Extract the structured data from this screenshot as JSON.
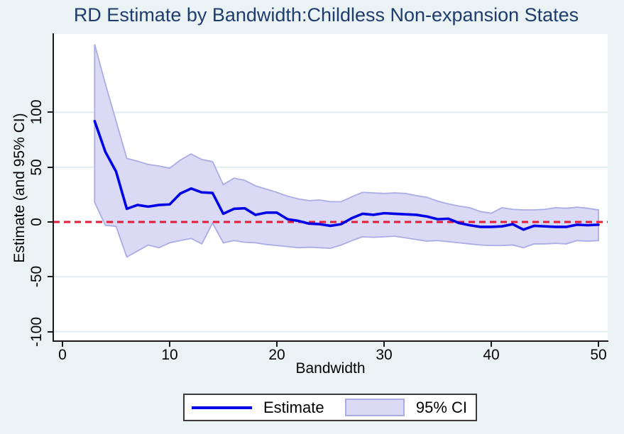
{
  "title": "RD Estimate by Bandwidth:Childless Non-expansion States",
  "axes": {
    "x": {
      "label": "Bandwidth",
      "ticks": [
        0,
        10,
        20,
        30,
        40,
        50
      ]
    },
    "y": {
      "label": "Estimate (and 95% CI)",
      "ticks": [
        -100,
        -50,
        0,
        50,
        100
      ]
    }
  },
  "legend": {
    "estimate_label": "Estimate",
    "ci_label": "95% CI"
  },
  "colors": {
    "background": "#EAF2F3",
    "plot_background": "#FFFFFF",
    "title": "#1E3C6E",
    "estimate_line": "#0000E8",
    "ci_fill": "#DADAF4",
    "ci_edge": "#ABACE5",
    "zero_line": "#E41B38",
    "gridline": "#E1EEF0",
    "axis": "#1A1A1A"
  },
  "chart_data": {
    "type": "line",
    "title": "RD Estimate by Bandwidth:Childless Non-expansion States",
    "xlabel": "Bandwidth",
    "ylabel": "Estimate (and 95% CI)",
    "xlim": [
      -0.9,
      50.9
    ],
    "ylim": [
      -108,
      171
    ],
    "grid": true,
    "legend_position": "bottom",
    "reference_line": {
      "y": 0,
      "style": "dashed",
      "color": "#E41B38"
    },
    "x": [
      3,
      4,
      5,
      6,
      7,
      8,
      9,
      10,
      11,
      12,
      13,
      14,
      15,
      16,
      17,
      18,
      19,
      20,
      21,
      22,
      23,
      24,
      25,
      26,
      27,
      28,
      29,
      30,
      31,
      32,
      33,
      34,
      35,
      36,
      37,
      38,
      39,
      40,
      41,
      42,
      43,
      44,
      45,
      46,
      47,
      48,
      49,
      50
    ],
    "series": [
      {
        "name": "Estimate",
        "values": [
          92,
          64,
          46,
          12,
          15.5,
          14,
          15.5,
          16,
          26,
          30.5,
          27,
          26.5,
          7.5,
          12,
          12.5,
          6.5,
          8.5,
          8.5,
          2.5,
          1,
          -1.5,
          -2,
          -3.5,
          -2,
          3.5,
          7.5,
          6.5,
          8,
          7.5,
          7,
          6.5,
          5,
          2.5,
          3,
          -1,
          -3,
          -4.5,
          -4.5,
          -4,
          -2,
          -7,
          -3.5,
          -4,
          -4.5,
          -4.5,
          -2.5,
          -3,
          -2.5
        ]
      },
      {
        "name": "95% CI upper",
        "values": [
          162,
          126,
          92,
          58,
          55.5,
          52.5,
          51,
          49,
          56.5,
          62,
          57,
          55,
          34,
          40,
          38,
          33,
          30,
          27,
          23.5,
          21,
          19.5,
          20,
          18.5,
          18.5,
          23,
          27,
          26.5,
          26,
          26.5,
          26,
          24,
          22.5,
          19,
          16.5,
          14.5,
          13,
          9.5,
          8,
          13,
          11.5,
          11,
          11,
          11.5,
          13,
          12.5,
          13.5,
          12.5,
          11
        ]
      },
      {
        "name": "95% CI lower",
        "values": [
          18,
          -3,
          -4,
          -32,
          -26.5,
          -21,
          -23.5,
          -19,
          -17,
          -15,
          -20,
          -1,
          -19,
          -17,
          -18.5,
          -19,
          -20.5,
          -21.5,
          -22.5,
          -23.5,
          -23,
          -23.5,
          -24,
          -21,
          -17,
          -13.5,
          -14,
          -13.5,
          -13,
          -14.5,
          -16,
          -17.5,
          -17,
          -18,
          -19,
          -20,
          -21,
          -21.5,
          -21.5,
          -21,
          -23.5,
          -20,
          -20,
          -19.5,
          -20,
          -17,
          -17.5,
          -17
        ]
      }
    ]
  }
}
